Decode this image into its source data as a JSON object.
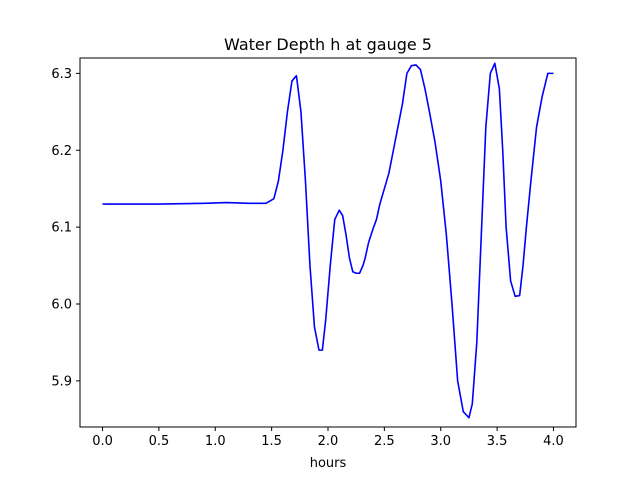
{
  "chart_data": {
    "type": "line",
    "title": "Water Depth h at gauge 5",
    "xlabel": "hours",
    "ylabel": "",
    "xlim": [
      -0.2,
      4.2
    ],
    "ylim": [
      5.84,
      6.32
    ],
    "xticks": [
      0.0,
      0.5,
      1.0,
      1.5,
      2.0,
      2.5,
      3.0,
      3.5,
      4.0
    ],
    "xtick_labels": [
      "0.0",
      "0.5",
      "1.0",
      "1.5",
      "2.0",
      "2.5",
      "3.0",
      "3.5",
      "4.0"
    ],
    "yticks": [
      5.9,
      6.0,
      6.1,
      6.2,
      6.3
    ],
    "ytick_labels": [
      "5.9",
      "6.0",
      "6.1",
      "6.2",
      "6.3"
    ],
    "grid": false,
    "series": [
      {
        "color": "#0000ff",
        "x": [
          0.0,
          0.5,
          0.9,
          1.1,
          1.3,
          1.45,
          1.52,
          1.56,
          1.6,
          1.64,
          1.68,
          1.72,
          1.76,
          1.8,
          1.84,
          1.88,
          1.92,
          1.95,
          1.98,
          2.02,
          2.06,
          2.1,
          2.13,
          2.16,
          2.19,
          2.22,
          2.25,
          2.28,
          2.31,
          2.33,
          2.36,
          2.4,
          2.43,
          2.46,
          2.5,
          2.54,
          2.58,
          2.62,
          2.66,
          2.7,
          2.74,
          2.78,
          2.82,
          2.86,
          2.9,
          2.95,
          3.0,
          3.05,
          3.1,
          3.15,
          3.2,
          3.25,
          3.28,
          3.32,
          3.36,
          3.4,
          3.44,
          3.48,
          3.52,
          3.55,
          3.58,
          3.62,
          3.66,
          3.7,
          3.73,
          3.76,
          3.8,
          3.85,
          3.9,
          3.95,
          4.0
        ],
        "y": [
          6.13,
          6.13,
          6.131,
          6.132,
          6.131,
          6.131,
          6.137,
          6.16,
          6.2,
          6.25,
          6.29,
          6.297,
          6.25,
          6.16,
          6.05,
          5.97,
          5.94,
          5.94,
          5.98,
          6.05,
          6.11,
          6.122,
          6.115,
          6.09,
          6.06,
          6.042,
          6.04,
          6.04,
          6.05,
          6.06,
          6.08,
          6.098,
          6.11,
          6.13,
          6.15,
          6.17,
          6.2,
          6.23,
          6.26,
          6.3,
          6.31,
          6.311,
          6.305,
          6.28,
          6.25,
          6.21,
          6.16,
          6.09,
          6.0,
          5.9,
          5.86,
          5.852,
          5.87,
          5.95,
          6.09,
          6.23,
          6.3,
          6.313,
          6.28,
          6.2,
          6.1,
          6.03,
          6.01,
          6.011,
          6.05,
          6.1,
          6.16,
          6.23,
          6.27,
          6.3,
          6.3
        ]
      }
    ]
  }
}
